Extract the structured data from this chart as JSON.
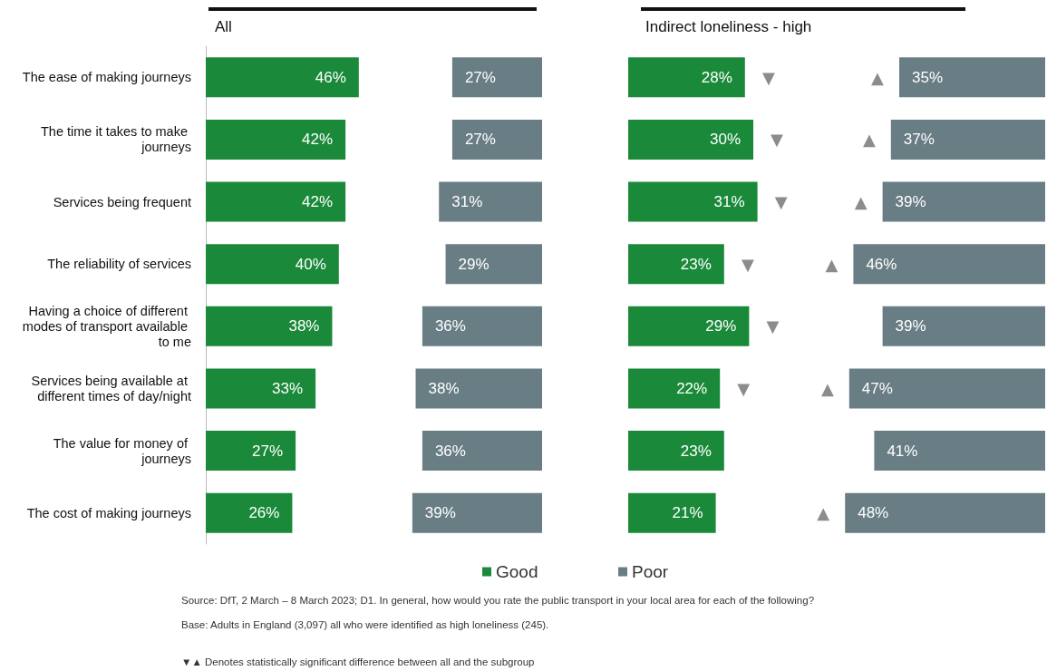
{
  "chart_data": [
    {
      "type": "bar",
      "orientation": "horizontal",
      "title": "All",
      "categories": [
        "The ease of making journeys",
        "The time it takes to make journeys",
        "Services being frequent",
        "The reliability of services",
        "Having a choice of different modes of transport available to me",
        "Services being available at different times of day/night",
        "The value for money of journeys",
        "The cost of making journeys"
      ],
      "tick_labels": "y",
      "legend": "bottom",
      "series": [
        {
          "name": "Good",
          "color": "#1a8a3a",
          "values": [
            46,
            42,
            42,
            40,
            38,
            33,
            27,
            26
          ],
          "value_labels": [
            "46%",
            "42%",
            "42%",
            "40%",
            "38%",
            "33%",
            "27%",
            "26%"
          ]
        }
      ],
      "annotations": [
        "Source: DfT, 2 March – 8 March 2023; D1. In general, how would you rate the public transport in your local area for each of the following?",
        "Base: Adults in England (3,097) all who were identified as high loneliness (245).",
        "▼▲ Denotes statistically significant difference between all and the subgroup"
      ]
    },
    {
      "type": "bar",
      "orientation": "horizontal",
      "categories": [
        "The ease of making journeys",
        "The time it takes to make journeys",
        "Services being frequent",
        "The reliability of services",
        "Having a choice of different modes of transport available to me",
        "Services being available at different times of day/night",
        "The value for money of journeys",
        "The cost of making journeys"
      ],
      "tick_labels": false,
      "legend": "bottom",
      "series": [
        {
          "name": "Poor",
          "color": "#687d84",
          "values": [
            27,
            27,
            31,
            29,
            36,
            38,
            36,
            39
          ],
          "value_labels": [
            "27%",
            "27%",
            "31%",
            "29%",
            "36%",
            "38%",
            "36%",
            "39%"
          ]
        }
      ]
    },
    {
      "type": "bar",
      "orientation": "horizontal",
      "title": "Indirect loneliness - high",
      "categories": [
        "The ease of making journeys",
        "The time it takes to make journeys",
        "Services being frequent",
        "The reliability of services",
        "Having a choice of different modes of transport available to me",
        "Services being available at different times of day/night",
        "The value for money of journeys",
        "The cost of making journeys"
      ],
      "tick_labels": false,
      "series": [
        {
          "color": "#1a8a3a",
          "values": [
            28,
            30,
            31,
            23,
            29,
            22,
            23,
            21
          ],
          "value_labels": [
            "28%",
            "30%",
            "31%",
            "23%",
            "29%",
            "22%",
            "23%",
            "21%"
          ]
        }
      ],
      "annotations": [
        {
          "text": "▼",
          "x": 28,
          "y": "The ease of making journeys"
        },
        {
          "text": "▼",
          "x": 30,
          "y": "The time it takes to make journeys"
        },
        {
          "text": "▼",
          "x": 31,
          "y": "Services being frequent"
        },
        {
          "text": "▼",
          "x": 23,
          "y": "The reliability of services"
        },
        {
          "text": "▼",
          "x": 29,
          "y": "Having a choice of different modes of transport available to me"
        },
        {
          "text": "▼",
          "x": 22,
          "y": "Services being available at different times of day/night"
        }
      ]
    },
    {
      "type": "bar",
      "orientation": "horizontal",
      "categories": [
        "The ease of making journeys",
        "The time it takes to make journeys",
        "Services being frequent",
        "The reliability of services",
        "Having a choice of different modes of transport available to me",
        "Services being available at different times of day/night",
        "The value for money of journeys",
        "The cost of making journeys"
      ],
      "tick_labels": false,
      "series": [
        {
          "color": "#687d84",
          "values": [
            35,
            37,
            39,
            46,
            39,
            47,
            41,
            48
          ],
          "value_labels": [
            "35%",
            "37%",
            "39%",
            "46%",
            "39%",
            "47%",
            "41%",
            "48%"
          ]
        }
      ],
      "annotations": [
        {
          "text": "▲",
          "x": 35,
          "y": "The ease of making journeys"
        },
        {
          "text": "▲",
          "x": 37,
          "y": "The time it takes to make journeys"
        },
        {
          "text": "▲",
          "x": 39,
          "y": "Services being frequent"
        },
        {
          "text": "▲",
          "x": 46,
          "y": "The reliability of services"
        },
        {
          "text": "▲",
          "x": 47,
          "y": "Services being available at different times of day/night"
        },
        {
          "text": "▲",
          "x": 48,
          "y": "The cost of making journeys"
        }
      ]
    }
  ]
}
